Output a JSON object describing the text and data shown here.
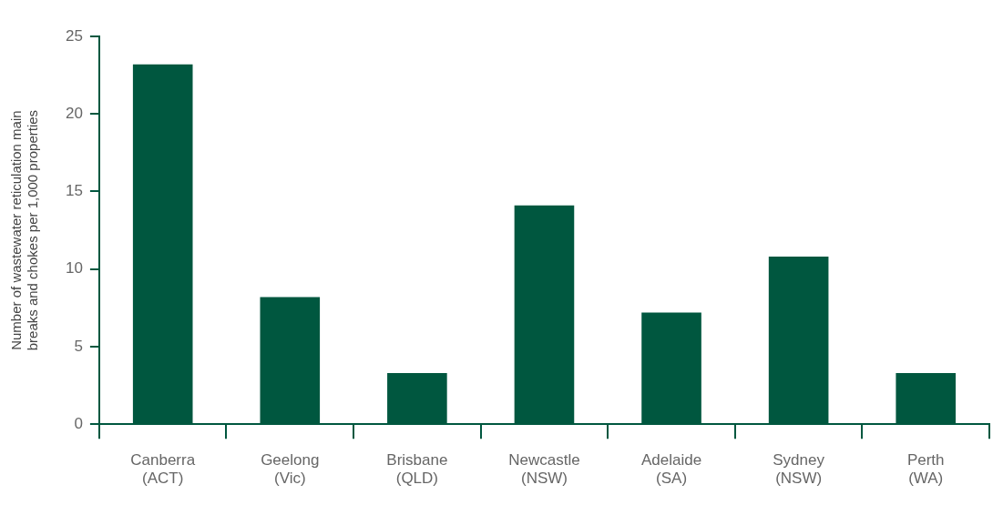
{
  "chart_data": {
    "type": "bar",
    "ylabel": "Number of wastewater reticulation main breaks and chokes per 1,000 properties",
    "categories": [
      "Canberra (ACT)",
      "Geelong (Vic)",
      "Brisbane (QLD)",
      "Newcastle (NSW)",
      "Adelaide (SA)",
      "Sydney (NSW)",
      "Perth (WA)"
    ],
    "values": [
      23.2,
      8.2,
      3.3,
      14.1,
      7.2,
      10.8,
      3.3
    ],
    "color": "#00573f",
    "ylim": [
      0,
      25
    ],
    "yticks": [
      0,
      5,
      10,
      15,
      20,
      25
    ],
    "grid": false,
    "legend": false
  }
}
